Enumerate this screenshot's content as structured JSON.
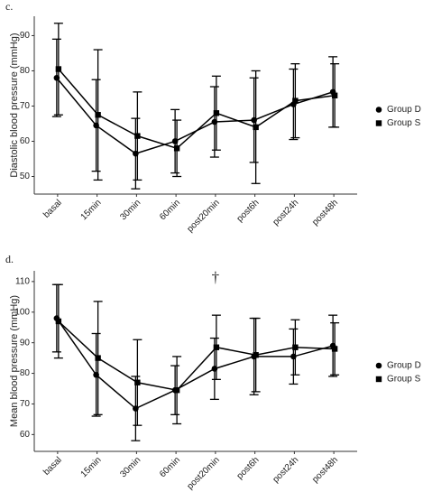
{
  "chart_data": [
    {
      "type": "line",
      "label": "c.",
      "y_label": "Diastolic blood pressure (mmHg)",
      "categories": [
        "basal",
        "15min",
        "30min",
        "60min",
        "post20min",
        "post6h",
        "post24h",
        "post48h"
      ],
      "ylim": [
        45,
        95.5
      ],
      "yticks": [
        50,
        60,
        70,
        80,
        90
      ],
      "series": [
        {
          "name": "Group D",
          "color": "#000000",
          "marker": "circle",
          "values": [
            78,
            64.5,
            56.5,
            60,
            65.5,
            66,
            70.5,
            74
          ],
          "errors": [
            11,
            13,
            10,
            9,
            10,
            12,
            10,
            10
          ]
        },
        {
          "name": "Group S",
          "color": "#000000",
          "marker": "square",
          "values": [
            80.5,
            67.5,
            61.5,
            58,
            68,
            64,
            71.5,
            73
          ],
          "errors": [
            13,
            18.5,
            12.5,
            8,
            10.5,
            16,
            10.5,
            9
          ]
        }
      ]
    },
    {
      "type": "line",
      "label": "d.",
      "y_label": "Mean blood pressure (mmHg)",
      "categories": [
        "basal",
        "15min",
        "30min",
        "60min",
        "post20min",
        "post6h",
        "post24h",
        "post48h"
      ],
      "ylim": [
        54.5,
        113.5
      ],
      "yticks": [
        60,
        70,
        80,
        90,
        100,
        110
      ],
      "annotations": [
        {
          "text": "†",
          "category": "post20min",
          "y": 111
        }
      ],
      "series": [
        {
          "name": "Group D",
          "color": "#000000",
          "marker": "circle",
          "values": [
            98,
            79.5,
            68.5,
            74.5,
            81.5,
            85.5,
            85.5,
            89
          ],
          "errors": [
            11,
            13.5,
            10.5,
            8,
            10,
            12.5,
            9,
            10
          ]
        },
        {
          "name": "Group S",
          "color": "#000000",
          "marker": "square",
          "values": [
            97,
            85,
            77,
            74.5,
            88.5,
            86,
            88.5,
            88
          ],
          "errors": [
            12,
            18.5,
            14,
            11,
            10.5,
            12,
            9,
            8.5
          ]
        }
      ]
    }
  ]
}
